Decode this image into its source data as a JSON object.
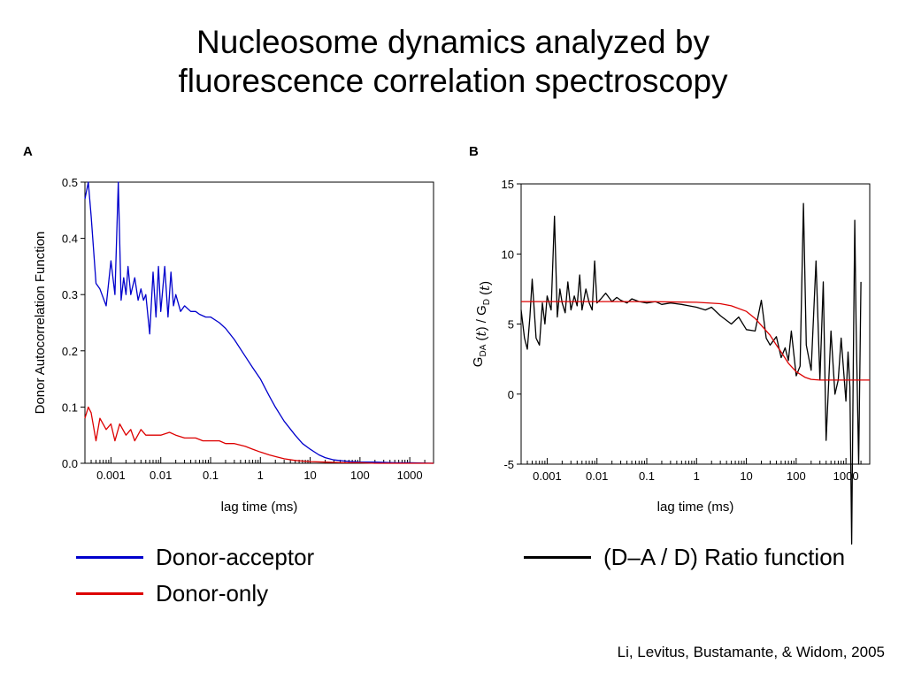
{
  "title": {
    "line1": "Nucleosome dynamics analyzed by",
    "line2": "fluorescence correlation spectroscopy"
  },
  "citation": "Li, Levitus, Bustamante, & Widom, 2005",
  "legend": {
    "items": [
      {
        "label": "Donor-acceptor",
        "color": "#0000cc"
      },
      {
        "label": "Donor-only",
        "color": "#dd0000"
      },
      {
        "label": "(D–A / D) Ratio function",
        "color": "#000000"
      }
    ]
  },
  "chart_data": [
    {
      "panel": "A",
      "type": "line",
      "xscale": "log",
      "xlim": [
        0.0003,
        3000
      ],
      "ylim": [
        0.0,
        0.5
      ],
      "xlabel": "lag time (ms)",
      "ylabel": "Donor Autocorrelation Function",
      "xticks": [
        0.001,
        0.01,
        0.1,
        1,
        10,
        100,
        1000
      ],
      "xtick_labels": [
        "0.001",
        "0.01",
        "0.1",
        "1",
        "10",
        "100",
        "1000"
      ],
      "yticks": [
        0.0,
        0.1,
        0.2,
        0.3,
        0.4,
        0.5
      ],
      "ytick_labels": [
        "0.0",
        "0.1",
        "0.2",
        "0.3",
        "0.4",
        "0.5"
      ],
      "series": [
        {
          "name": "Donor-acceptor",
          "color": "#0000cc",
          "x": [
            0.0003,
            0.00035,
            0.0004,
            0.0005,
            0.0006,
            0.0008,
            0.001,
            0.0012,
            0.0014,
            0.0016,
            0.0018,
            0.002,
            0.0022,
            0.0025,
            0.003,
            0.0035,
            0.004,
            0.0045,
            0.005,
            0.006,
            0.007,
            0.008,
            0.009,
            0.01,
            0.012,
            0.014,
            0.016,
            0.018,
            0.02,
            0.025,
            0.03,
            0.04,
            0.05,
            0.06,
            0.08,
            0.1,
            0.15,
            0.2,
            0.3,
            0.5,
            0.7,
            1,
            1.5,
            2,
            3,
            5,
            7,
            10,
            15,
            20,
            30,
            50,
            70,
            100,
            200,
            500,
            1000,
            3000
          ],
          "y": [
            0.47,
            0.5,
            0.44,
            0.32,
            0.31,
            0.28,
            0.36,
            0.3,
            0.5,
            0.29,
            0.33,
            0.3,
            0.35,
            0.3,
            0.33,
            0.29,
            0.31,
            0.29,
            0.3,
            0.23,
            0.34,
            0.26,
            0.35,
            0.27,
            0.35,
            0.26,
            0.34,
            0.28,
            0.3,
            0.27,
            0.28,
            0.27,
            0.27,
            0.265,
            0.26,
            0.26,
            0.25,
            0.24,
            0.22,
            0.19,
            0.17,
            0.15,
            0.12,
            0.1,
            0.075,
            0.05,
            0.035,
            0.025,
            0.015,
            0.01,
            0.006,
            0.004,
            0.003,
            0.002,
            0.002,
            0.001,
            0.001,
            0.0
          ]
        },
        {
          "name": "Donor-only",
          "color": "#dd0000",
          "x": [
            0.0003,
            0.00035,
            0.0004,
            0.0005,
            0.0006,
            0.0008,
            0.001,
            0.0012,
            0.0015,
            0.002,
            0.0025,
            0.003,
            0.004,
            0.005,
            0.007,
            0.01,
            0.015,
            0.02,
            0.03,
            0.05,
            0.07,
            0.1,
            0.15,
            0.2,
            0.3,
            0.5,
            0.7,
            1,
            1.5,
            2,
            3,
            5,
            7,
            10,
            20,
            50,
            100,
            200,
            500,
            1000,
            3000
          ],
          "y": [
            0.08,
            0.1,
            0.09,
            0.04,
            0.08,
            0.06,
            0.07,
            0.04,
            0.07,
            0.05,
            0.06,
            0.04,
            0.06,
            0.05,
            0.05,
            0.05,
            0.055,
            0.05,
            0.045,
            0.045,
            0.04,
            0.04,
            0.04,
            0.035,
            0.035,
            0.03,
            0.025,
            0.02,
            0.015,
            0.012,
            0.008,
            0.005,
            0.004,
            0.003,
            0.002,
            0.001,
            0.001,
            0.0,
            0.0,
            0.0,
            0.0
          ]
        }
      ]
    },
    {
      "panel": "B",
      "type": "line",
      "xscale": "log",
      "xlim": [
        0.0003,
        3000
      ],
      "ylim": [
        -5,
        15
      ],
      "xlabel": "lag time (ms)",
      "ylabel_parts": [
        "G",
        "DA",
        " (",
        "t",
        ") / G",
        "D",
        " (",
        "t",
        ")"
      ],
      "xticks": [
        0.001,
        0.01,
        0.1,
        1,
        10,
        100,
        1000
      ],
      "xtick_labels": [
        "0.001",
        "0.01",
        "0.1",
        "1",
        "10",
        "100",
        "1000"
      ],
      "yticks": [
        -5,
        0,
        5,
        10,
        15
      ],
      "ytick_labels": [
        "-5",
        "0",
        "5",
        "10",
        "15"
      ],
      "series": [
        {
          "name": "(D–A / D) Ratio function",
          "color": "#000000",
          "x": [
            0.0003,
            0.00035,
            0.0004,
            0.00045,
            0.0005,
            0.0006,
            0.0007,
            0.0008,
            0.0009,
            0.001,
            0.0012,
            0.0014,
            0.0016,
            0.0018,
            0.002,
            0.0023,
            0.0026,
            0.003,
            0.0035,
            0.004,
            0.0045,
            0.005,
            0.006,
            0.007,
            0.008,
            0.009,
            0.01,
            0.012,
            0.015,
            0.02,
            0.025,
            0.03,
            0.04,
            0.05,
            0.07,
            0.1,
            0.15,
            0.2,
            0.3,
            0.5,
            0.7,
            1,
            1.5,
            2,
            3,
            5,
            7,
            10,
            15,
            20,
            25,
            30,
            40,
            50,
            60,
            70,
            80,
            100,
            120,
            140,
            160,
            200,
            250,
            300,
            350,
            400,
            500,
            600,
            700,
            800,
            1000,
            1100,
            1200,
            1300,
            1400,
            1500,
            1600,
            1800,
            2000
          ],
          "y": [
            6.0,
            4.0,
            3.2,
            5.5,
            8.2,
            4.0,
            3.5,
            6.5,
            5.0,
            7.0,
            6.0,
            12.7,
            5.5,
            7.5,
            6.5,
            5.8,
            8.0,
            6.0,
            7.0,
            6.3,
            8.5,
            6.0,
            7.5,
            6.5,
            6.0,
            9.5,
            6.5,
            6.8,
            7.2,
            6.6,
            6.9,
            6.7,
            6.5,
            6.8,
            6.6,
            6.5,
            6.6,
            6.4,
            6.5,
            6.4,
            6.3,
            6.2,
            6.0,
            6.2,
            5.6,
            5.0,
            5.5,
            4.6,
            4.5,
            6.7,
            4.0,
            3.5,
            4.1,
            2.6,
            3.3,
            2.4,
            4.5,
            1.3,
            2.0,
            13.6,
            3.5,
            1.7,
            9.5,
            1.0,
            8.0,
            -3.3,
            4.5,
            0.0,
            1.0,
            4.0,
            -0.5,
            3.0,
            0.5,
            -10.7,
            2.0,
            12.4,
            5.0,
            -5.0,
            8.0
          ]
        },
        {
          "name": "",
          "color": "#dd0000",
          "x": [
            0.0003,
            0.001,
            0.01,
            0.1,
            1,
            3,
            5,
            10,
            15,
            20,
            30,
            40,
            50,
            70,
            100,
            150,
            200,
            300,
            1000,
            3000
          ],
          "y": [
            6.6,
            6.6,
            6.6,
            6.6,
            6.55,
            6.45,
            6.3,
            5.9,
            5.4,
            4.9,
            4.2,
            3.5,
            3.0,
            2.2,
            1.6,
            1.2,
            1.05,
            1.0,
            1.0,
            1.0
          ]
        }
      ]
    }
  ]
}
